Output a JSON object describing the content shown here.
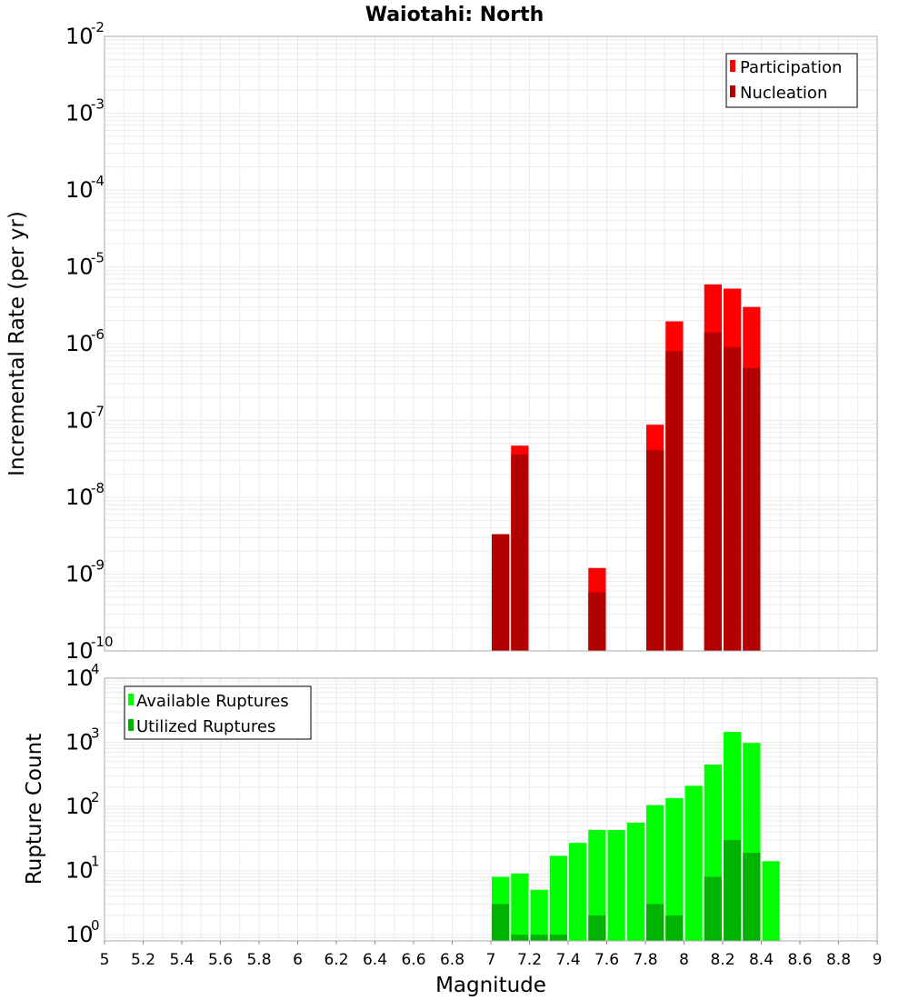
{
  "chart_data": [
    {
      "type": "bar",
      "title": "Waiotahi: North",
      "xlabel": "",
      "ylabel": "Incremental Rate (per yr)",
      "y_scale": "log",
      "ylim": [
        1e-10,
        0.01
      ],
      "xlim": [
        5,
        9
      ],
      "grid": true,
      "legend_position": "top-right",
      "bar_width": 0.1,
      "series": [
        {
          "name": "Participation",
          "color": "#ff0000",
          "points": [
            {
              "x": 7.05,
              "y": 3.3e-09
            },
            {
              "x": 7.15,
              "y": 4.7e-08
            },
            {
              "x": 7.55,
              "y": 1.2e-09
            },
            {
              "x": 7.85,
              "y": 8.8e-08
            },
            {
              "x": 7.95,
              "y": 1.95e-06
            },
            {
              "x": 8.15,
              "y": 5.9e-06
            },
            {
              "x": 8.25,
              "y": 5.2e-06
            },
            {
              "x": 8.35,
              "y": 3e-06
            }
          ]
        },
        {
          "name": "Nucleation",
          "color": "#b30000",
          "points": [
            {
              "x": 7.05,
              "y": 3.3e-09
            },
            {
              "x": 7.15,
              "y": 3.6e-08
            },
            {
              "x": 7.55,
              "y": 5.8e-10
            },
            {
              "x": 7.85,
              "y": 4.1e-08
            },
            {
              "x": 7.95,
              "y": 8e-07
            },
            {
              "x": 8.15,
              "y": 1.4e-06
            },
            {
              "x": 8.25,
              "y": 9e-07
            },
            {
              "x": 8.35,
              "y": 4.8e-07
            }
          ]
        }
      ]
    },
    {
      "type": "bar",
      "title": "",
      "xlabel": "Magnitude",
      "ylabel": "Rupture Count",
      "y_scale": "log",
      "ylim": [
        0.8,
        10000
      ],
      "xlim": [
        5,
        9
      ],
      "grid": true,
      "legend_position": "top-left",
      "bar_width": 0.1,
      "series": [
        {
          "name": "Available Ruptures",
          "color": "#00ff00",
          "points": [
            {
              "x": 7.05,
              "y": 8
            },
            {
              "x": 7.15,
              "y": 9
            },
            {
              "x": 7.25,
              "y": 5
            },
            {
              "x": 7.35,
              "y": 17
            },
            {
              "x": 7.45,
              "y": 27
            },
            {
              "x": 7.55,
              "y": 43
            },
            {
              "x": 7.65,
              "y": 43
            },
            {
              "x": 7.75,
              "y": 56
            },
            {
              "x": 7.85,
              "y": 105
            },
            {
              "x": 7.95,
              "y": 135
            },
            {
              "x": 8.05,
              "y": 210
            },
            {
              "x": 8.15,
              "y": 450
            },
            {
              "x": 8.25,
              "y": 1450
            },
            {
              "x": 8.35,
              "y": 980
            },
            {
              "x": 8.45,
              "y": 14
            }
          ]
        },
        {
          "name": "Utilized Ruptures",
          "color": "#00b300",
          "points": [
            {
              "x": 7.05,
              "y": 3
            },
            {
              "x": 7.15,
              "y": 1
            },
            {
              "x": 7.25,
              "y": 1
            },
            {
              "x": 7.35,
              "y": 1
            },
            {
              "x": 7.55,
              "y": 2
            },
            {
              "x": 7.85,
              "y": 3
            },
            {
              "x": 7.95,
              "y": 2
            },
            {
              "x": 8.15,
              "y": 8
            },
            {
              "x": 8.25,
              "y": 30
            },
            {
              "x": 8.35,
              "y": 19
            }
          ]
        }
      ]
    }
  ],
  "x_ticks": [
    "5",
    "5.2",
    "5.4",
    "5.6",
    "5.8",
    "6",
    "6.2",
    "6.4",
    "6.6",
    "6.8",
    "7",
    "7.2",
    "7.4",
    "7.6",
    "7.8",
    "8",
    "8.2",
    "8.4",
    "8.6",
    "8.8",
    "9"
  ],
  "top_y_ticks": [
    {
      "base": "10",
      "exp": "-10"
    },
    {
      "base": "10",
      "exp": "-9"
    },
    {
      "base": "10",
      "exp": "-8"
    },
    {
      "base": "10",
      "exp": "-7"
    },
    {
      "base": "10",
      "exp": "-6"
    },
    {
      "base": "10",
      "exp": "-5"
    },
    {
      "base": "10",
      "exp": "-4"
    },
    {
      "base": "10",
      "exp": "-3"
    },
    {
      "base": "10",
      "exp": "-2"
    }
  ],
  "bottom_y_ticks": [
    {
      "base": "10",
      "exp": "0"
    },
    {
      "base": "10",
      "exp": "1"
    },
    {
      "base": "10",
      "exp": "2"
    },
    {
      "base": "10",
      "exp": "3"
    },
    {
      "base": "10",
      "exp": "4"
    }
  ],
  "colors": {
    "grid": "#ebebeb",
    "frame": "#aaaaaa",
    "legend_border": "#000000"
  }
}
